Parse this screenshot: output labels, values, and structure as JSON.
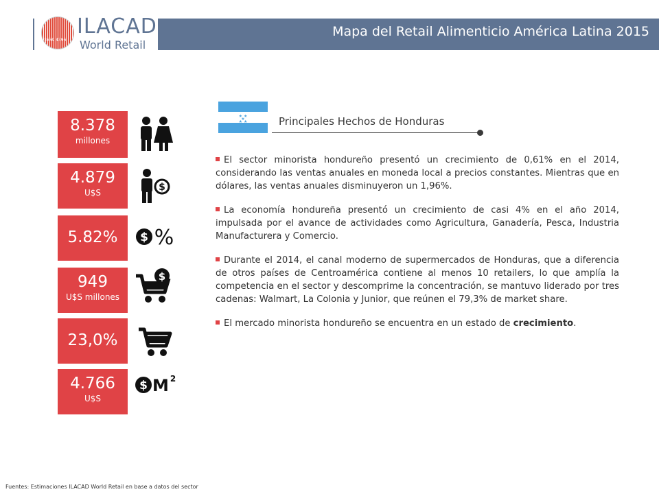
{
  "header": {
    "title": "Mapa del Retail Alimenticio América Latina 2015"
  },
  "logo": {
    "name": "ILACAD",
    "subtitle": "World Retail",
    "code": "3669 4396",
    "brand_color": "#5f7493",
    "accent_color": "#e04a3a"
  },
  "stats": [
    {
      "value": "8.378",
      "unit": "millones",
      "icon": "people-icon"
    },
    {
      "value": "4.879",
      "unit": "U$S",
      "icon": "person-money-icon"
    },
    {
      "value": "5.82%",
      "unit": "",
      "icon": "dollar-percent-icon"
    },
    {
      "value": "949",
      "unit": "U$S millones",
      "icon": "cart-dollar-icon"
    },
    {
      "value": "23,0%",
      "unit": "",
      "icon": "cart-icon"
    },
    {
      "value": "4.766",
      "unit": "U$S",
      "icon": "dollar-m2-icon"
    }
  ],
  "card_color": "#e04346",
  "section": {
    "title": "Principales Hechos de Honduras",
    "flag_icon": "honduras-flag-icon",
    "flag_colors": {
      "blue": "#4aa3df",
      "white": "#ffffff"
    }
  },
  "bullets": [
    {
      "text": "El sector minorista hondureño presentó un crecimiento de 0,61% en el 2014, considerando las ventas anuales en moneda local a precios constantes. Mientras que en dólares, las ventas anuales disminuyeron un 1,96%."
    },
    {
      "text": "La economía hondureña presentó un crecimiento de casi 4% en el año 2014, impulsada por el avance de actividades como Agricultura, Ganadería, Pesca, Industria Manufacturera y Comercio."
    },
    {
      "text": "Durante el 2014, el canal moderno de supermercados de Honduras, que a diferencia de otros países de Centroamérica contiene al menos 10 retailers, lo que amplía la competencia en el sector y descomprime la concentración, se mantuvo liderado por tres cadenas: Walmart, La Colonia y Junior, que reúnen el 79,3% de market share."
    },
    {
      "text": "El mercado minorista hondureño se encuentra en un estado de ",
      "bold": "crecimiento",
      "tail": "."
    }
  ],
  "footer": {
    "source": "Fuentes: Estimaciones ILACAD World Retail en base a datos del sector"
  }
}
